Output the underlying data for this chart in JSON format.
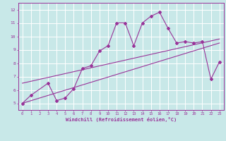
{
  "xlabel": "Windchill (Refroidissement éolien,°C)",
  "xlim": [
    -0.5,
    23.5
  ],
  "ylim": [
    4.5,
    12.5
  ],
  "yticks": [
    5,
    6,
    7,
    8,
    9,
    10,
    11,
    12
  ],
  "xticks": [
    0,
    1,
    2,
    3,
    4,
    5,
    6,
    7,
    8,
    9,
    10,
    11,
    12,
    13,
    14,
    15,
    16,
    17,
    18,
    19,
    20,
    21,
    22,
    23
  ],
  "bg_color": "#c8e8e8",
  "grid_color": "#ffffff",
  "line_color": "#993399",
  "data_x": [
    0,
    1,
    3,
    4,
    5,
    6,
    7,
    8,
    9,
    10,
    11,
    12,
    13,
    14,
    15,
    16,
    17,
    18,
    19,
    20,
    21,
    22,
    23
  ],
  "data_y": [
    5.0,
    5.6,
    6.5,
    5.2,
    5.4,
    6.1,
    7.6,
    7.8,
    8.9,
    9.3,
    11.0,
    11.0,
    9.3,
    11.0,
    11.5,
    11.8,
    10.6,
    9.5,
    9.6,
    9.5,
    9.6,
    6.8,
    8.1
  ],
  "line1_x": [
    0,
    23
  ],
  "line1_y": [
    5.0,
    9.5
  ],
  "line2_x": [
    0,
    23
  ],
  "line2_y": [
    6.5,
    9.8
  ]
}
